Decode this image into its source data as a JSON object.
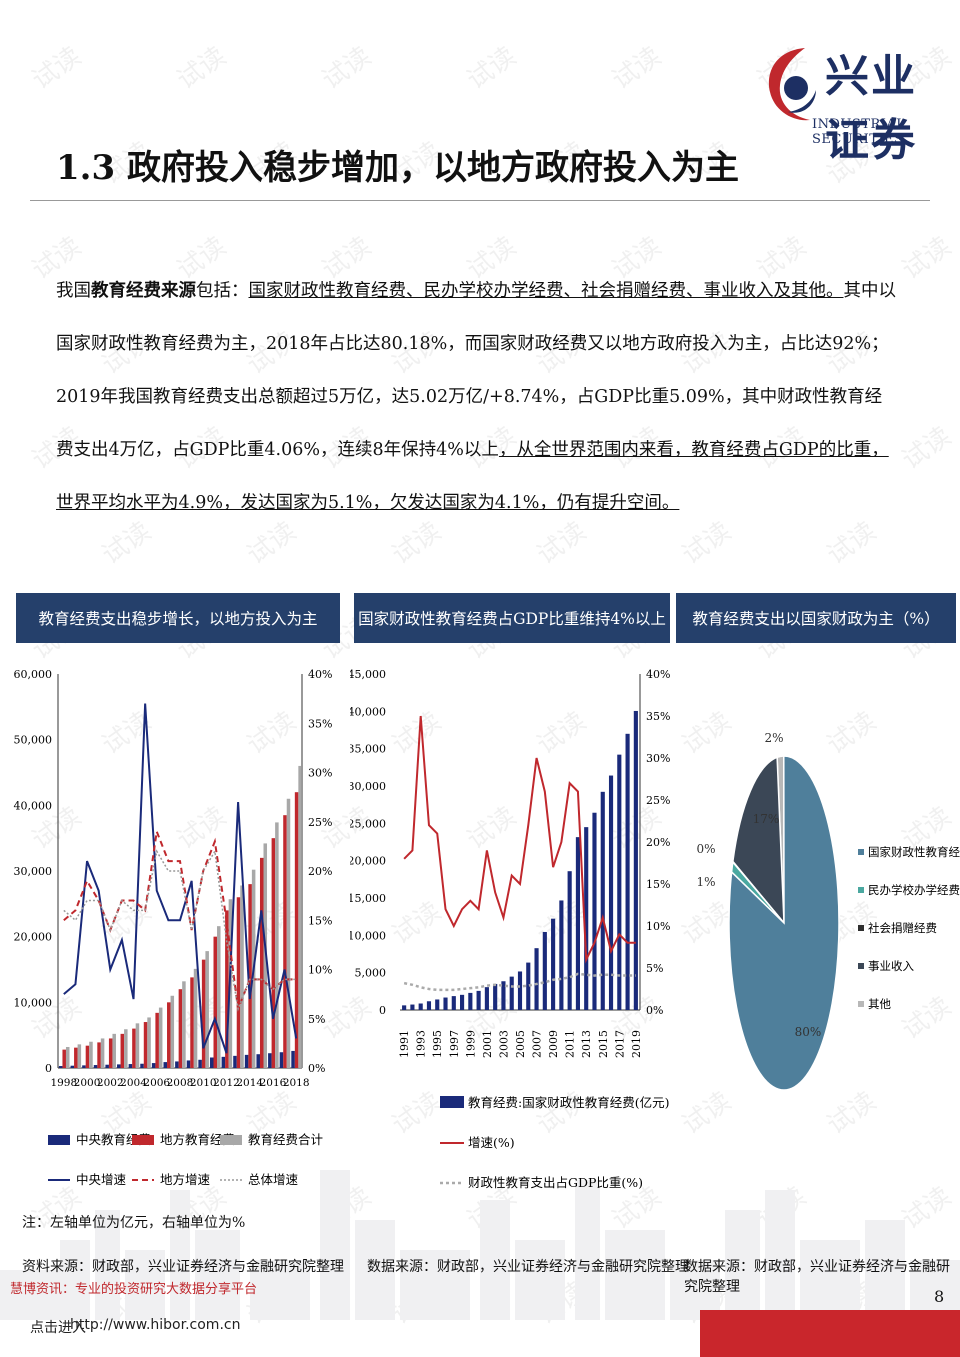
{
  "header": {
    "logo_cn": "兴业证券",
    "logo_en": "INDUSTRIAL SECURITIES",
    "title": "1.3 政府投入稳步增加，以地方政府投入为主"
  },
  "intro": {
    "p1": "我国",
    "p2": "教育经费来源",
    "p3": "包括：",
    "p4": "国家财政性教育经费、民办学校办学经费、社会捐赠经费、事业收入及其他。",
    "p5": "其中以国家财政性教育经费为主，2018年占比达80.18%，而国家财政经费又以地方政府投入为主，占比达92%；2019年我国教育经费支出总额超过5万亿，达5.02万亿/+8.74%，占GDP比重5.09%，其中财政性教育经费支出4万亿，占GDP比重4.06%，连续8年保持4%以上",
    "p6": "，从全世界范围内来看，教育经费占GDP的比重，世界平均水平为4.9%，发达国家为5.1%，欠发达国家为4.1%，仍有提升空间。"
  },
  "colors": {
    "navy": "#1a2a7a",
    "red": "#c0282d",
    "gray": "#a8a8a8",
    "panel": "#25406b",
    "pie_main": "#4f7f9b",
    "pie_dark": "#3b4756",
    "pie_teal": "#4aa8a0"
  },
  "charts": {
    "c1": {
      "title": "教育经费支出稳步增长，以地方投入为主",
      "legend": [
        "中央教育经费",
        "地方教育经费",
        "教育经费合计",
        "中央增速",
        "地方增速",
        "总体增速"
      ],
      "note": "注：左轴单位为亿元，右轴单位为%",
      "source": "资料来源：财政部，兴业证券经济与金融研究院整理"
    },
    "c2": {
      "title": "国家财政性教育经费占GDP比重维持4%以上",
      "legend": [
        "教育经费:国家财政性教育经费(亿元)",
        "增速(%)",
        "财政性教育支出占GDP比重(%)"
      ],
      "source": "数据来源：财政部，兴业证券经济与金融研究院整理"
    },
    "c3": {
      "title": "教育经费支出以国家财政为主（%）",
      "legend": [
        "国家财政性教育经费",
        "民办学校办学经费",
        "社会捐赠经费",
        "事业收入",
        "其他"
      ],
      "source": "数据来源：财政部，兴业证券经济与金融研究院整理"
    }
  },
  "footer": {
    "click": "点击进入",
    "site": "http://www.hibor.com.cn",
    "overlay": "慧博资讯：专业的投资研究大数据分享平台",
    "page": "8"
  },
  "watermark": "试读",
  "chart_data": [
    {
      "type": "bar",
      "title": "教育经费支出稳步增长，以地方投入为主",
      "x": [
        1998,
        1999,
        2000,
        2001,
        2002,
        2003,
        2004,
        2005,
        2006,
        2007,
        2008,
        2009,
        2010,
        2011,
        2012,
        2013,
        2014,
        2015,
        2016,
        2017,
        2018
      ],
      "ylim": [
        0,
        60000
      ],
      "y2lim": [
        0,
        40
      ],
      "series": [
        {
          "name": "中央教育经费",
          "kind": "bar",
          "axis": "left",
          "values": [
            300,
            350,
            400,
            450,
            500,
            550,
            600,
            650,
            750,
            900,
            1000,
            1150,
            1250,
            1600,
            1700,
            1850,
            2000,
            2100,
            2250,
            2400,
            2600
          ]
        },
        {
          "name": "地方教育经费",
          "kind": "bar",
          "axis": "left",
          "values": [
            2800,
            3100,
            3400,
            3900,
            4500,
            5200,
            6000,
            7000,
            8400,
            10000,
            12000,
            13800,
            16500,
            20000,
            24000,
            26000,
            28000,
            32000,
            35000,
            38500,
            42000
          ]
        },
        {
          "name": "教育经费合计",
          "kind": "bar",
          "axis": "left",
          "values": [
            3200,
            3600,
            4000,
            4500,
            5200,
            5900,
            6800,
            7700,
            9200,
            11000,
            13200,
            15100,
            17800,
            21600,
            25700,
            27800,
            30200,
            34200,
            37400,
            41000,
            46000
          ]
        },
        {
          "name": "中央增速",
          "kind": "line",
          "axis": "right",
          "values": [
            7.5,
            8.5,
            21,
            18,
            10,
            13,
            7,
            37,
            18,
            15,
            15,
            19,
            2,
            5,
            1.5,
            27,
            7,
            16,
            5,
            10,
            3
          ]
        },
        {
          "name": "地方增速",
          "kind": "line",
          "axis": "right",
          "values": [
            15,
            16,
            19,
            17,
            14,
            17,
            17,
            16,
            24,
            21,
            21,
            14,
            20,
            23,
            15,
            6,
            9,
            9,
            8,
            9,
            9
          ]
        },
        {
          "name": "总体增速",
          "kind": "line",
          "axis": "right",
          "values": [
            16,
            15,
            17,
            17,
            14,
            17,
            16,
            16,
            22,
            20,
            20,
            14,
            20,
            22,
            13,
            6,
            9,
            9,
            8,
            9,
            9
          ]
        }
      ]
    },
    {
      "type": "bar",
      "title": "国家财政性教育经费占GDP比重维持4%以上",
      "x": [
        1991,
        1992,
        1993,
        1994,
        1995,
        1996,
        1997,
        1998,
        1999,
        2000,
        2001,
        2002,
        2003,
        2004,
        2005,
        2006,
        2007,
        2008,
        2009,
        2010,
        2011,
        2012,
        2013,
        2014,
        2015,
        2016,
        2017,
        2018,
        2019
      ],
      "ylim": [
        0,
        45000
      ],
      "y2lim": [
        0,
        40
      ],
      "series": [
        {
          "name": "教育经费:国家财政性教育经费(亿元)",
          "kind": "bar",
          "axis": "left",
          "values": [
            620,
            730,
            870,
            1170,
            1410,
            1670,
            1860,
            2030,
            2290,
            2560,
            3060,
            3490,
            3850,
            4470,
            5160,
            6350,
            8280,
            10450,
            12230,
            14670,
            18590,
            23150,
            24490,
            26420,
            29220,
            31400,
            34200,
            36990,
            40050
          ]
        },
        {
          "name": "增速(%)",
          "kind": "line",
          "axis": "right",
          "values": [
            18,
            19,
            35,
            22,
            21,
            12,
            10,
            12,
            13,
            12,
            19,
            14,
            11,
            16,
            15,
            22,
            30,
            26,
            17,
            20,
            27,
            26,
            6,
            8,
            11,
            7,
            9,
            8,
            8
          ]
        },
        {
          "name": "财政性教育支出占GDP比重(%)",
          "kind": "line",
          "axis": "right",
          "values": [
            3.2,
            3.0,
            2.7,
            2.5,
            2.4,
            2.4,
            2.4,
            2.5,
            2.6,
            2.7,
            2.9,
            3.0,
            2.9,
            2.8,
            2.8,
            2.9,
            3.1,
            3.3,
            3.6,
            3.7,
            3.9,
            4.3,
            4.2,
            4.1,
            4.2,
            4.2,
            4.1,
            4.1,
            4.1
          ]
        }
      ]
    },
    {
      "type": "pie",
      "title": "教育经费支出以国家财政为主（%）",
      "categories": [
        "国家财政性教育经费",
        "民办学校办学经费",
        "社会捐赠经费",
        "事业收入",
        "其他"
      ],
      "values": [
        80,
        1,
        0,
        17,
        2
      ],
      "labels": [
        "80%",
        "1%",
        "0%",
        "17%",
        "2%"
      ],
      "legend_position": "right"
    }
  ]
}
